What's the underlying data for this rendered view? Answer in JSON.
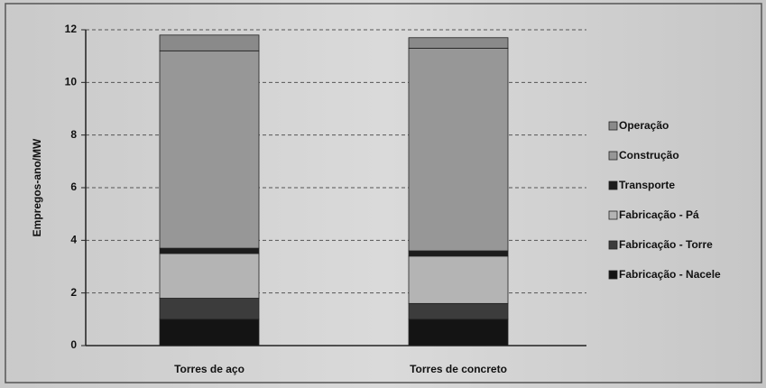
{
  "chart_data": {
    "type": "bar",
    "stacked": true,
    "y_label": "Empregos-ano/MW",
    "categories": [
      "Torres de aço",
      "Torres de concreto"
    ],
    "series": [
      {
        "name": "Fabricação - Nacele",
        "color": "#141414",
        "values": [
          1.0,
          1.0
        ]
      },
      {
        "name": "Fabricação - Torre",
        "color": "#3c3c3c",
        "values": [
          0.8,
          0.6
        ]
      },
      {
        "name": "Fabricação - Pá",
        "color": "#b4b4b4",
        "values": [
          1.7,
          1.8
        ]
      },
      {
        "name": "Transporte",
        "color": "#1c1c1c",
        "values": [
          0.2,
          0.2
        ]
      },
      {
        "name": "Construção",
        "color": "#979797",
        "values": [
          7.5,
          7.7
        ]
      },
      {
        "name": "Operação",
        "color": "#8a8a8a",
        "values": [
          0.6,
          0.4
        ]
      }
    ],
    "ylim": [
      0,
      12
    ],
    "yticks": [
      0,
      2,
      4,
      6,
      8,
      10,
      12
    ],
    "grid": true
  }
}
